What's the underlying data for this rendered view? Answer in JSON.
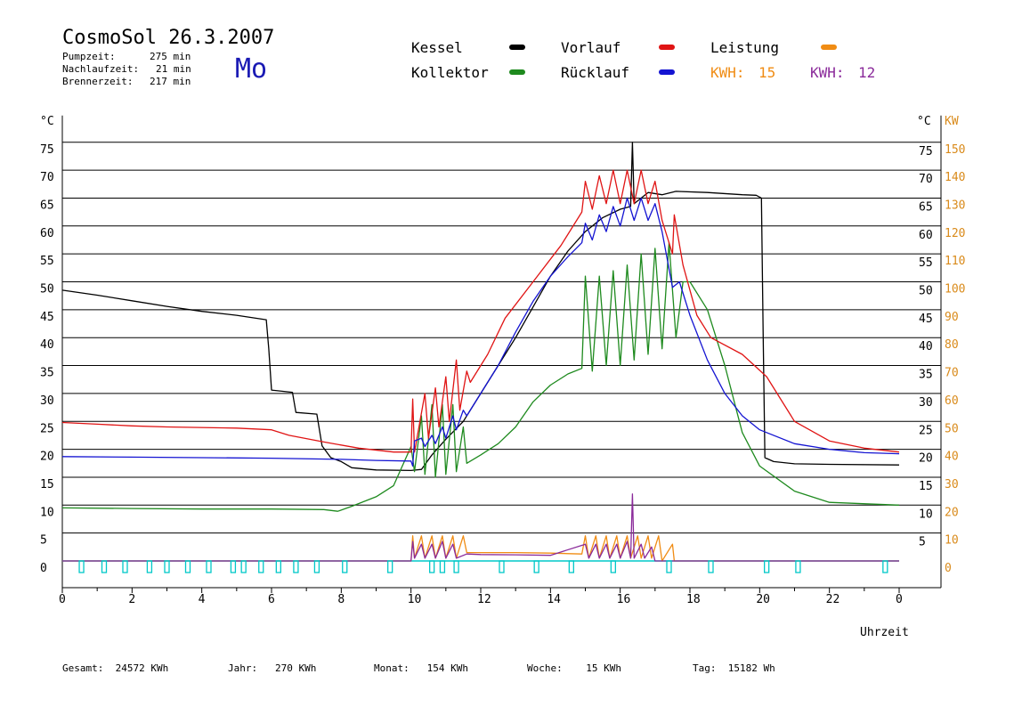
{
  "header": {
    "title": "CosmoSol 26.3.2007",
    "pump_label": "Pumpzeit:",
    "pump_value": "275 min",
    "nachlauf_label": "Nachlaufzeit:",
    "nachlauf_value": "21 min",
    "brenner_label": "Brennerzeit:",
    "brenner_value": "217 min",
    "day": "Mo"
  },
  "legend": {
    "kessel": "Kessel",
    "kollektor": "Kollektor",
    "vorlauf": "Vorlauf",
    "ruecklauf": "Rücklauf",
    "leistung": "Leistung",
    "kwh1_label": "KWH:",
    "kwh1_value": "15",
    "kwh2_label": "KWH:",
    "kwh2_value": "12",
    "colors": {
      "kessel": "#000000",
      "kollektor": "#1e8a1e",
      "vorlauf": "#e01414",
      "ruecklauf": "#1414d2",
      "leistung": "#f08c14",
      "kwh2": "#8a2a9a"
    }
  },
  "footer": {
    "gesamt": "Gesamt:  24572 KWh",
    "jahr": "Jahr:   270 KWh",
    "monat": "Monat:   154 KWh",
    "woche": "Woche:    15 KWh",
    "tag": "Tag:  15182 Wh"
  },
  "chart_data": {
    "type": "line",
    "xlabel": "Uhrzeit",
    "ylabel_left": "°C",
    "ylabel_right_c": "°C",
    "ylabel_right_kw": "KW",
    "xlim": [
      0,
      24
    ],
    "ylim": [
      0,
      75
    ],
    "x_ticks": [
      "0",
      "2",
      "4",
      "6",
      "8",
      "10",
      "12",
      "14",
      "16",
      "18",
      "20",
      "22",
      "0"
    ],
    "y_ticks": [
      "0",
      "5",
      "10",
      "15",
      "20",
      "25",
      "30",
      "35",
      "40",
      "45",
      "50",
      "55",
      "60",
      "65",
      "70",
      "75"
    ],
    "kw_ticks": [
      "0",
      "10",
      "20",
      "30",
      "40",
      "50",
      "60",
      "70",
      "80",
      "90",
      "100",
      "110",
      "120",
      "130",
      "140",
      "150"
    ],
    "grid": true,
    "series": [
      {
        "name": "Kessel",
        "color": "#000000",
        "points": [
          [
            0,
            48.5
          ],
          [
            1,
            47.6
          ],
          [
            2,
            46.6
          ],
          [
            3,
            45.6
          ],
          [
            4,
            44.7
          ],
          [
            5,
            44.0
          ],
          [
            5.85,
            43.2
          ],
          [
            5.92,
            38
          ],
          [
            6.0,
            30.6
          ],
          [
            6.6,
            30.2
          ],
          [
            6.7,
            26.6
          ],
          [
            7.3,
            26.3
          ],
          [
            7.45,
            20.6
          ],
          [
            7.7,
            18.5
          ],
          [
            8.0,
            17.8
          ],
          [
            8.3,
            16.7
          ],
          [
            9.0,
            16.3
          ],
          [
            10.0,
            16.2
          ],
          [
            10.3,
            16.4
          ],
          [
            10.6,
            19
          ],
          [
            11.0,
            21.8
          ],
          [
            11.5,
            25
          ],
          [
            12,
            30
          ],
          [
            12.5,
            35
          ],
          [
            13,
            40
          ],
          [
            13.5,
            45.5
          ],
          [
            14,
            51
          ],
          [
            14.5,
            55.5
          ],
          [
            15,
            59
          ],
          [
            15.5,
            61.5
          ],
          [
            16,
            63
          ],
          [
            16.3,
            63.5
          ],
          [
            16.35,
            75
          ],
          [
            16.4,
            64
          ],
          [
            16.8,
            66
          ],
          [
            17.2,
            65.6
          ],
          [
            17.6,
            66.2
          ],
          [
            18.5,
            66
          ],
          [
            19.5,
            65.6
          ],
          [
            19.9,
            65.5
          ],
          [
            20.05,
            65
          ],
          [
            20.1,
            40
          ],
          [
            20.15,
            18.5
          ],
          [
            20.4,
            17.8
          ],
          [
            21,
            17.4
          ],
          [
            22,
            17.3
          ],
          [
            24,
            17.2
          ]
        ]
      },
      {
        "name": "Kollektor",
        "color": "#1e8a1e",
        "points": [
          [
            0,
            9.5
          ],
          [
            2,
            9.4
          ],
          [
            4,
            9.3
          ],
          [
            6,
            9.3
          ],
          [
            7.5,
            9.2
          ],
          [
            7.9,
            8.9
          ],
          [
            8.3,
            9.8
          ],
          [
            9,
            11.5
          ],
          [
            9.5,
            13.5
          ],
          [
            10.0,
            20.5
          ],
          [
            10.1,
            16
          ],
          [
            10.3,
            26
          ],
          [
            10.4,
            15.5
          ],
          [
            10.6,
            28
          ],
          [
            10.7,
            15
          ],
          [
            10.9,
            28
          ],
          [
            11.0,
            15.5
          ],
          [
            11.2,
            28
          ],
          [
            11.3,
            16
          ],
          [
            11.5,
            24
          ],
          [
            11.6,
            17.5
          ],
          [
            12,
            19
          ],
          [
            12.5,
            21
          ],
          [
            13,
            24
          ],
          [
            13.5,
            28.5
          ],
          [
            14,
            31.5
          ],
          [
            14.5,
            33.5
          ],
          [
            14.9,
            34.5
          ],
          [
            15.0,
            51
          ],
          [
            15.2,
            34
          ],
          [
            15.4,
            51
          ],
          [
            15.6,
            35
          ],
          [
            15.8,
            52
          ],
          [
            16.0,
            35
          ],
          [
            16.2,
            53
          ],
          [
            16.4,
            36
          ],
          [
            16.6,
            55
          ],
          [
            16.8,
            37
          ],
          [
            17.0,
            56
          ],
          [
            17.2,
            38
          ],
          [
            17.4,
            57
          ],
          [
            17.6,
            40
          ],
          [
            17.8,
            50
          ],
          [
            18,
            50
          ],
          [
            18.5,
            45
          ],
          [
            19,
            35
          ],
          [
            19.5,
            23
          ],
          [
            20,
            17
          ],
          [
            21,
            12.5
          ],
          [
            22,
            10.5
          ],
          [
            24,
            10
          ]
        ]
      },
      {
        "name": "Vorlauf",
        "color": "#e01414",
        "points": [
          [
            0,
            24.8
          ],
          [
            1,
            24.5
          ],
          [
            2,
            24.2
          ],
          [
            3,
            24
          ],
          [
            5,
            23.8
          ],
          [
            6,
            23.5
          ],
          [
            6.5,
            22.5
          ],
          [
            7.5,
            21.3
          ],
          [
            8.5,
            20.2
          ],
          [
            9.5,
            19.5
          ],
          [
            10.0,
            19.5
          ],
          [
            10.05,
            29
          ],
          [
            10.1,
            19.5
          ],
          [
            10.4,
            30
          ],
          [
            10.5,
            22
          ],
          [
            10.7,
            31
          ],
          [
            10.8,
            24
          ],
          [
            11.0,
            33
          ],
          [
            11.1,
            25
          ],
          [
            11.3,
            36
          ],
          [
            11.4,
            27
          ],
          [
            11.6,
            34
          ],
          [
            11.7,
            32
          ],
          [
            12.2,
            37
          ],
          [
            12.7,
            43.5
          ],
          [
            13.5,
            50
          ],
          [
            14.3,
            56.5
          ],
          [
            14.9,
            62.5
          ],
          [
            15.0,
            68
          ],
          [
            15.2,
            63
          ],
          [
            15.4,
            69
          ],
          [
            15.6,
            64
          ],
          [
            15.8,
            70
          ],
          [
            16.0,
            64
          ],
          [
            16.2,
            70
          ],
          [
            16.4,
            64
          ],
          [
            16.6,
            70
          ],
          [
            16.8,
            64
          ],
          [
            17.0,
            68
          ],
          [
            17.2,
            61
          ],
          [
            17.5,
            55
          ],
          [
            17.55,
            62
          ],
          [
            17.8,
            53
          ],
          [
            18.2,
            44
          ],
          [
            18.6,
            40
          ],
          [
            19.5,
            37
          ],
          [
            20.2,
            33
          ],
          [
            21,
            25
          ],
          [
            22,
            21.5
          ],
          [
            23,
            20.2
          ],
          [
            24,
            19.5
          ]
        ]
      },
      {
        "name": "Rücklauf",
        "color": "#1414d2",
        "points": [
          [
            0,
            18.7
          ],
          [
            2,
            18.6
          ],
          [
            4,
            18.5
          ],
          [
            6,
            18.4
          ],
          [
            8,
            18.2
          ],
          [
            9,
            18
          ],
          [
            10.0,
            17.9
          ],
          [
            10.05,
            17
          ],
          [
            10.1,
            21.5
          ],
          [
            10.3,
            22
          ],
          [
            10.4,
            20.5
          ],
          [
            10.6,
            22.5
          ],
          [
            10.7,
            21
          ],
          [
            10.9,
            24
          ],
          [
            11.0,
            22
          ],
          [
            11.2,
            26
          ],
          [
            11.3,
            23.5
          ],
          [
            11.5,
            27
          ],
          [
            11.6,
            26
          ],
          [
            12,
            30
          ],
          [
            12.5,
            35
          ],
          [
            13,
            41
          ],
          [
            13.5,
            46.5
          ],
          [
            14,
            51
          ],
          [
            14.5,
            54.5
          ],
          [
            14.9,
            57
          ],
          [
            15.0,
            60.5
          ],
          [
            15.2,
            57.5
          ],
          [
            15.4,
            62
          ],
          [
            15.6,
            59
          ],
          [
            15.8,
            63.5
          ],
          [
            16.0,
            60
          ],
          [
            16.2,
            65
          ],
          [
            16.4,
            61
          ],
          [
            16.6,
            65
          ],
          [
            16.8,
            61
          ],
          [
            17.0,
            64
          ],
          [
            17.2,
            59
          ],
          [
            17.5,
            49
          ],
          [
            17.7,
            50
          ],
          [
            18,
            44
          ],
          [
            18.5,
            36
          ],
          [
            19,
            30
          ],
          [
            19.5,
            26
          ],
          [
            20,
            23.5
          ],
          [
            21,
            21
          ],
          [
            22,
            20
          ],
          [
            23,
            19.4
          ],
          [
            24,
            19.2
          ]
        ]
      },
      {
        "name": "Leistung",
        "color": "#f08c14",
        "axis": "kw",
        "points": [
          [
            0,
            0
          ],
          [
            10.0,
            0
          ],
          [
            10.05,
            9
          ],
          [
            10.1,
            1
          ],
          [
            10.3,
            9
          ],
          [
            10.4,
            1
          ],
          [
            10.6,
            9
          ],
          [
            10.7,
            1
          ],
          [
            10.9,
            9
          ],
          [
            11.0,
            1
          ],
          [
            11.2,
            9
          ],
          [
            11.3,
            1
          ],
          [
            11.5,
            9
          ],
          [
            11.6,
            3
          ],
          [
            12,
            3
          ],
          [
            13,
            3
          ],
          [
            14,
            2.8
          ],
          [
            14.9,
            2.5
          ],
          [
            15.0,
            9
          ],
          [
            15.1,
            1
          ],
          [
            15.3,
            9
          ],
          [
            15.4,
            1
          ],
          [
            15.6,
            9
          ],
          [
            15.7,
            1
          ],
          [
            15.9,
            9
          ],
          [
            16.0,
            1
          ],
          [
            16.2,
            9
          ],
          [
            16.3,
            1
          ],
          [
            16.5,
            9
          ],
          [
            16.6,
            1
          ],
          [
            16.8,
            9
          ],
          [
            16.9,
            1
          ],
          [
            17.1,
            9
          ],
          [
            17.2,
            0
          ],
          [
            17.5,
            6
          ],
          [
            17.55,
            0
          ],
          [
            24,
            0
          ]
        ]
      },
      {
        "name": "KWH2",
        "color": "#8a2a9a",
        "axis": "kw",
        "points": [
          [
            0,
            0
          ],
          [
            10.0,
            0
          ],
          [
            10.05,
            7
          ],
          [
            10.1,
            1
          ],
          [
            10.3,
            6
          ],
          [
            10.4,
            1
          ],
          [
            10.6,
            6
          ],
          [
            10.7,
            1
          ],
          [
            10.9,
            7
          ],
          [
            11.0,
            1
          ],
          [
            11.2,
            6
          ],
          [
            11.3,
            1
          ],
          [
            11.6,
            2.5
          ],
          [
            12,
            2.3
          ],
          [
            13,
            2.2
          ],
          [
            14,
            2
          ],
          [
            15.0,
            6
          ],
          [
            15.1,
            1
          ],
          [
            15.3,
            6
          ],
          [
            15.4,
            1
          ],
          [
            15.6,
            6
          ],
          [
            15.7,
            1
          ],
          [
            15.9,
            6
          ],
          [
            16.0,
            1
          ],
          [
            16.2,
            7
          ],
          [
            16.3,
            1
          ],
          [
            16.35,
            24
          ],
          [
            16.4,
            1
          ],
          [
            16.6,
            6
          ],
          [
            16.7,
            1
          ],
          [
            16.9,
            5
          ],
          [
            17.0,
            0
          ],
          [
            24,
            0
          ]
        ]
      }
    ],
    "pump_markers": [
      0.55,
      1.2,
      1.8,
      2.5,
      3.0,
      3.6,
      4.2,
      4.9,
      5.2,
      5.7,
      6.2,
      6.7,
      7.3,
      8.1,
      9.4,
      10.6,
      10.9,
      11.3,
      12.6,
      13.6,
      14.6,
      15.8,
      17.4,
      18.6,
      20.2,
      21.1,
      23.6
    ]
  }
}
